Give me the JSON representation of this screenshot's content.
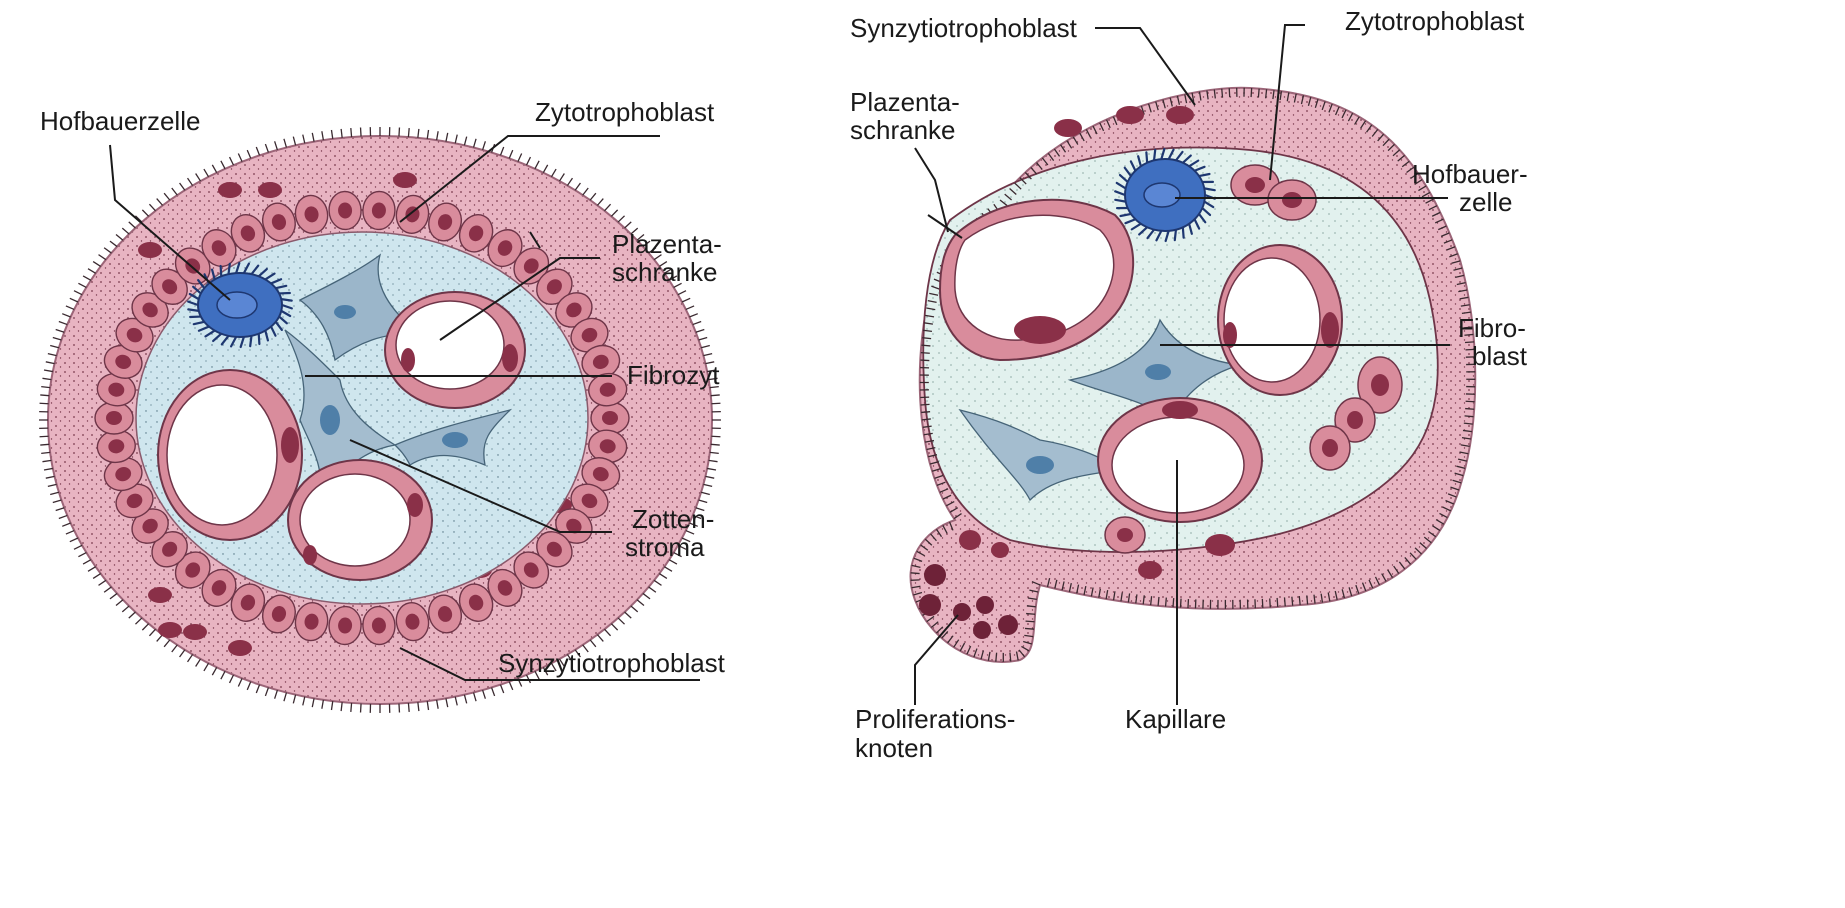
{
  "left_diagram": {
    "labels": {
      "hofbauerzelle": "Hofbauerzelle",
      "zytotrophoblast": "Zytotrophoblast",
      "plazentaschranke_1": "Plazenta-",
      "plazentaschranke_2": "schranke",
      "fibrozyt": "Fibrozyt",
      "zottenstroma_1": "Zotten-",
      "zottenstroma_2": "stroma",
      "synzytiotrophoblast": "Synzytiotrophoblast"
    }
  },
  "right_diagram": {
    "labels": {
      "synzytiotrophoblast": "Synzytiotrophoblast",
      "zytotrophoblast": "Zytotrophoblast",
      "plazentaschranke_1": "Plazenta-",
      "plazentaschranke_2": "schranke",
      "hofbauerzelle_1": "Hofbauer-",
      "hofbauerzelle_2": "zelle",
      "fibroblast_1": "Fibro-",
      "fibroblast_2": "blast",
      "proliferationsknoten_1": "Proliferations-",
      "proliferationsknoten_2": "knoten",
      "kapillare": "Kapillare"
    }
  },
  "colors": {
    "syncytium": "#e8b4c2",
    "syncytium_edge": "#c98aa0",
    "cytotroph_cell": "#d98c9c",
    "cell_nucleus": "#8a3048",
    "stroma_left": "#cfe6ee",
    "stroma_right": "#e2f1ee",
    "hofbauer": "#3f6fc0",
    "fibro": "#8aa7bf",
    "lumen": "#ffffff"
  }
}
